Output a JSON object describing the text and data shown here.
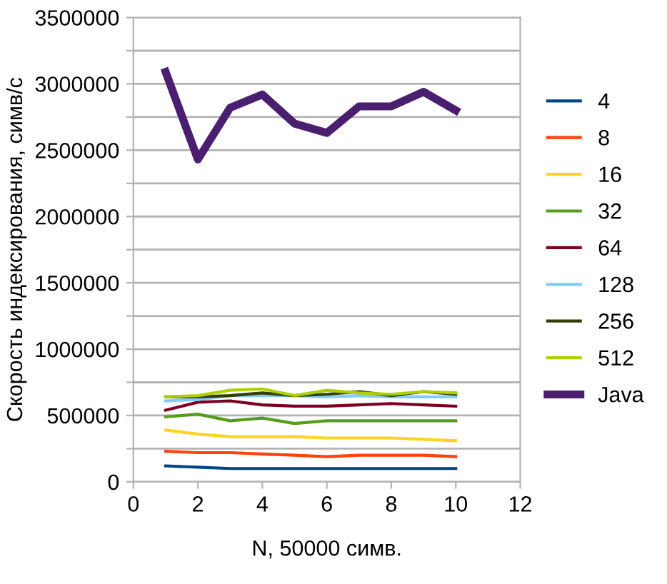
{
  "chart_data": {
    "type": "line",
    "xlabel": "N, 50000 симв.",
    "ylabel": "Скорость индексирования, симв/с",
    "x": [
      1,
      2,
      3,
      4,
      5,
      6,
      7,
      8,
      9,
      10
    ],
    "xlim": [
      0,
      12
    ],
    "xticks": [
      0,
      2,
      4,
      6,
      8,
      10,
      12
    ],
    "ylim": [
      0,
      3500000
    ],
    "yticks": [
      0,
      {
        "value": 250000,
        "label": null
      },
      500000,
      {
        "value": 750000,
        "label": null
      },
      1000000,
      {
        "value": 1250000,
        "label": null
      },
      1500000,
      {
        "value": 1750000,
        "label": null
      },
      2000000,
      {
        "value": 2250000,
        "label": null
      },
      2500000,
      {
        "value": 2750000,
        "label": null
      },
      3000000,
      {
        "value": 3250000,
        "label": null
      },
      3500000
    ],
    "grid": "y",
    "legend": "right",
    "marker": "none",
    "line_style": "solid",
    "series": [
      {
        "name": "4",
        "color": "#004586",
        "values": [
          120000,
          110000,
          100000,
          100000,
          100000,
          100000,
          100000,
          100000,
          100000,
          100000
        ]
      },
      {
        "name": "8",
        "color": "#ff420e",
        "values": [
          230000,
          220000,
          220000,
          210000,
          200000,
          190000,
          200000,
          200000,
          200000,
          190000
        ]
      },
      {
        "name": "16",
        "color": "#ffd320",
        "values": [
          390000,
          360000,
          340000,
          340000,
          340000,
          330000,
          330000,
          330000,
          320000,
          310000
        ]
      },
      {
        "name": "32",
        "color": "#579d1c",
        "values": [
          490000,
          510000,
          460000,
          480000,
          440000,
          460000,
          460000,
          460000,
          460000,
          460000
        ]
      },
      {
        "name": "64",
        "color": "#7e0021",
        "values": [
          540000,
          600000,
          610000,
          580000,
          570000,
          570000,
          580000,
          590000,
          580000,
          570000
        ]
      },
      {
        "name": "128",
        "color": "#83caff",
        "values": [
          610000,
          620000,
          650000,
          650000,
          650000,
          640000,
          650000,
          640000,
          640000,
          640000
        ]
      },
      {
        "name": "256",
        "color": "#314004",
        "values": [
          640000,
          640000,
          650000,
          670000,
          650000,
          660000,
          680000,
          650000,
          680000,
          660000
        ]
      },
      {
        "name": "512",
        "color": "#aecf00",
        "values": [
          640000,
          650000,
          690000,
          700000,
          650000,
          690000,
          670000,
          660000,
          680000,
          670000
        ]
      },
      {
        "name": "Java",
        "color": "#4b1f6f",
        "values": [
          3090000,
          2430000,
          2820000,
          2920000,
          2700000,
          2630000,
          2830000,
          2830000,
          2940000,
          2800000
        ]
      }
    ]
  }
}
